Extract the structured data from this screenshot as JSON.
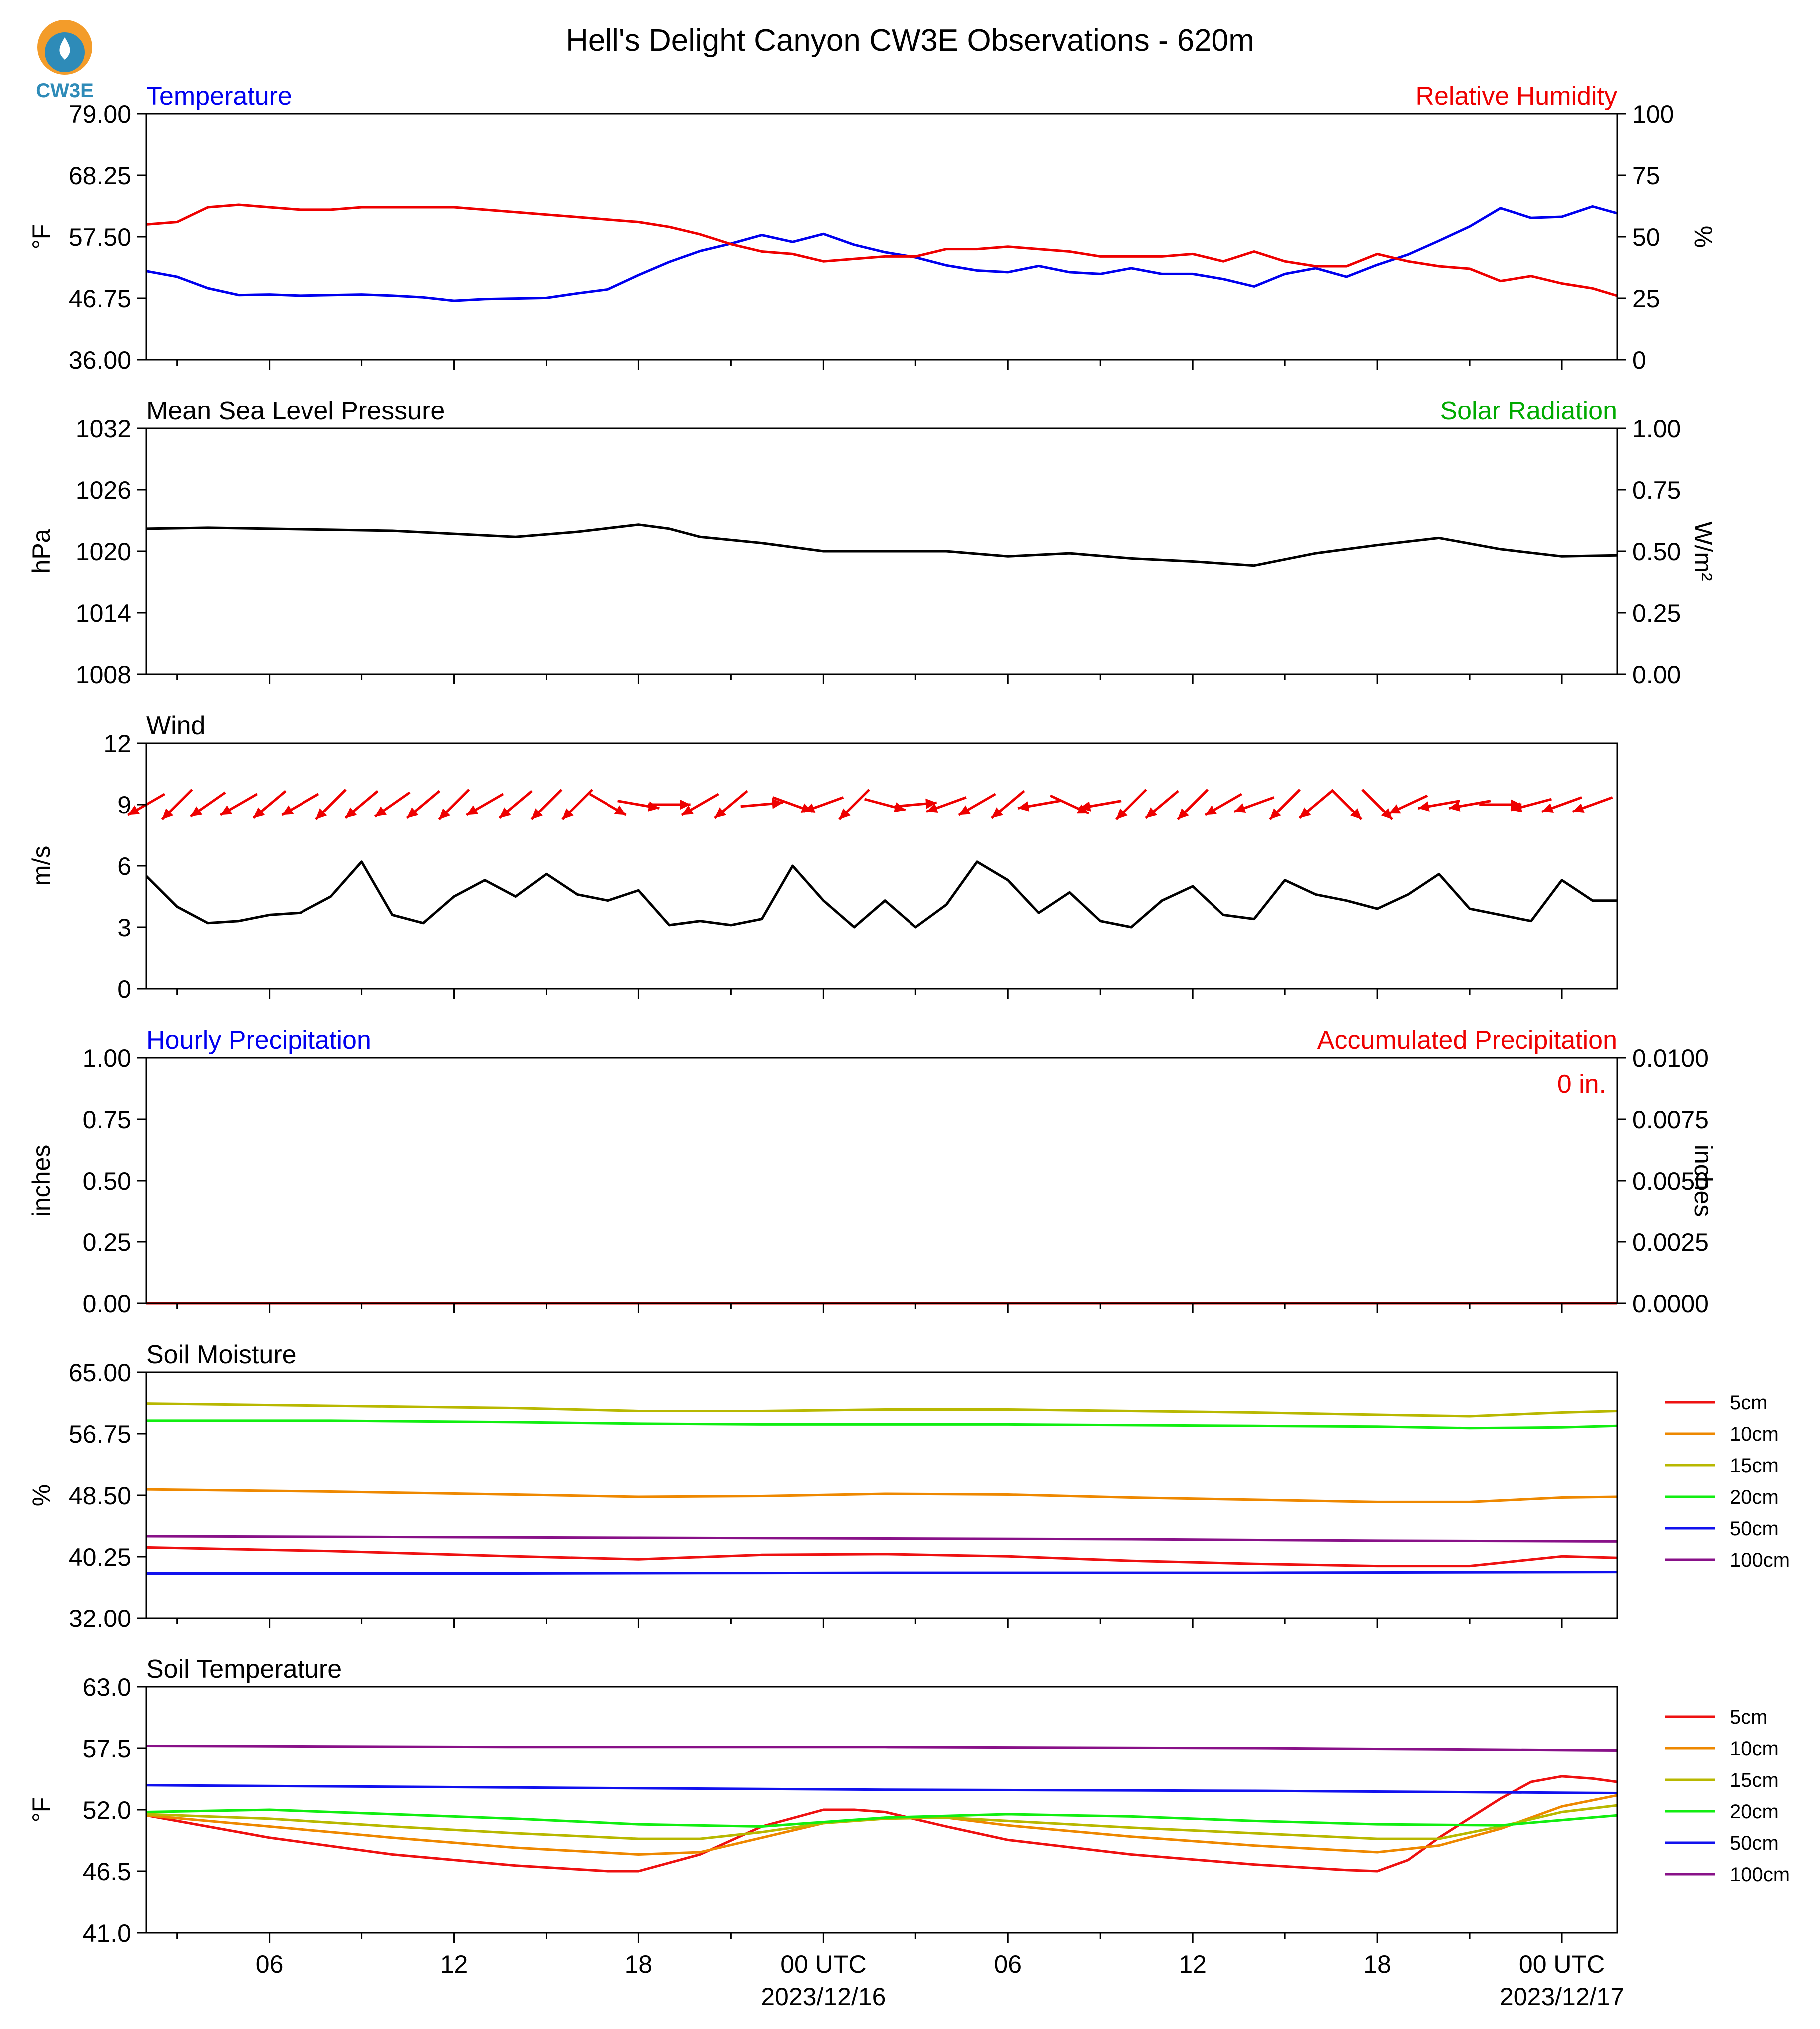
{
  "title": "Hell's Delight Canyon CW3E Observations - 620m",
  "logo": {
    "text": "CW3E"
  },
  "colors": {
    "blue": "#0000ee",
    "red": "#ee0000",
    "green": "#00aa00",
    "black": "#000000",
    "soil": {
      "5cm": "#ee1111",
      "10cm": "#ee8800",
      "15cm": "#b8b800",
      "20cm": "#11ee11",
      "50cm": "#1111ee",
      "100cm": "#881188"
    }
  },
  "chart_data": [
    {
      "type": "line",
      "panel": "temperature_humidity",
      "left_title": "Temperature",
      "right_title": "Relative Humidity",
      "ylabel": "°F",
      "ylabel_right": "%",
      "ylim": [
        36.0,
        79.0
      ],
      "ylim_right": [
        0,
        100
      ],
      "yticks": [
        "79.00",
        "68.25",
        "57.50",
        "46.75",
        "36.00"
      ],
      "yticks_right": [
        "100",
        "75",
        "50",
        "25",
        "0"
      ],
      "series": [
        {
          "name": "Temperature",
          "axis": "left",
          "x": [
            2,
            3,
            4,
            5,
            6,
            7,
            8,
            9,
            10,
            11,
            12,
            13,
            14,
            15,
            16,
            17,
            18,
            19,
            20,
            21,
            22,
            23,
            24,
            25,
            26,
            27,
            28,
            29,
            30,
            31,
            32,
            33,
            34,
            35,
            36,
            37,
            38,
            39,
            40,
            41,
            42,
            43,
            44,
            45,
            46,
            47,
            48,
            49,
            49.8
          ],
          "values": [
            51.5,
            50.5,
            48.5,
            47.3,
            47.4,
            47.2,
            47.3,
            47.4,
            47.2,
            46.9,
            46.3,
            46.6,
            46.7,
            46.8,
            47.6,
            48.3,
            50.8,
            53.1,
            55.0,
            56.3,
            57.8,
            56.6,
            58.0,
            56.1,
            54.8,
            53.9,
            52.5,
            51.6,
            51.3,
            52.4,
            51.3,
            51.0,
            52.0,
            51.0,
            51.0,
            50.1,
            48.8,
            51.0,
            52.0,
            50.5,
            52.6,
            54.4,
            56.8,
            59.3,
            62.5,
            60.8,
            61.0,
            62.8,
            61.6
          ]
        },
        {
          "name": "Relative Humidity",
          "axis": "right",
          "x": [
            2,
            3,
            4,
            5,
            6,
            7,
            8,
            9,
            10,
            11,
            12,
            13,
            14,
            15,
            16,
            17,
            18,
            19,
            20,
            21,
            22,
            23,
            24,
            25,
            26,
            27,
            28,
            29,
            30,
            31,
            32,
            33,
            34,
            35,
            36,
            37,
            38,
            39,
            40,
            41,
            42,
            43,
            44,
            45,
            46,
            47,
            48,
            49,
            49.8
          ],
          "values": [
            55,
            56,
            62,
            63,
            62,
            61,
            61,
            62,
            62,
            62,
            62,
            61,
            60,
            59,
            58,
            57,
            56,
            54,
            51,
            47,
            44,
            43,
            40,
            41,
            42,
            42,
            45,
            45,
            46,
            45,
            44,
            42,
            42,
            42,
            43,
            40,
            44,
            40,
            38,
            38,
            43,
            40,
            38,
            37,
            32,
            34,
            31,
            29,
            26
          ]
        }
      ]
    },
    {
      "type": "line",
      "panel": "pressure_solar",
      "left_title": "Mean Sea Level Pressure",
      "right_title": "Solar Radiation",
      "ylabel": "hPa",
      "ylabel_right": "W/m²",
      "ylim": [
        1008,
        1032
      ],
      "ylim_right": [
        0.0,
        1.0
      ],
      "yticks": [
        "1032",
        "1026",
        "1020",
        "1014",
        "1008"
      ],
      "yticks_right": [
        "1.00",
        "0.75",
        "0.50",
        "0.25",
        "0.00"
      ],
      "series": [
        {
          "name": "Mean Sea Level Pressure",
          "axis": "left",
          "x": [
            2,
            4,
            6,
            8,
            10,
            12,
            14,
            16,
            18,
            19,
            20,
            22,
            24,
            26,
            28,
            30,
            32,
            34,
            36,
            38,
            40,
            42,
            44,
            46,
            48,
            49.8
          ],
          "values": [
            1022.2,
            1022.3,
            1022.2,
            1022.1,
            1022.0,
            1021.7,
            1021.4,
            1021.9,
            1022.6,
            1022.2,
            1021.4,
            1020.8,
            1020.0,
            1020.0,
            1020.0,
            1019.5,
            1019.8,
            1019.3,
            1019.0,
            1018.6,
            1019.8,
            1020.6,
            1021.3,
            1020.2,
            1019.5,
            1019.6
          ]
        }
      ]
    },
    {
      "type": "line",
      "panel": "wind",
      "left_title": "Wind",
      "ylabel": "m/s",
      "ylim": [
        0,
        12
      ],
      "yticks": [
        "12",
        "9",
        "6",
        "3",
        "0"
      ],
      "series": [
        {
          "name": "Wind",
          "axis": "left",
          "x": [
            2,
            3,
            4,
            5,
            6,
            7,
            8,
            9,
            10,
            11,
            12,
            13,
            14,
            15,
            16,
            17,
            18,
            19,
            20,
            21,
            22,
            23,
            24,
            25,
            26,
            27,
            28,
            29,
            30,
            31,
            32,
            33,
            34,
            35,
            36,
            37,
            38,
            39,
            40,
            41,
            42,
            43,
            44,
            45,
            46,
            47,
            48,
            49,
            49.8
          ],
          "values": [
            5.5,
            4.0,
            3.2,
            3.3,
            3.6,
            3.7,
            4.5,
            6.2,
            3.6,
            3.2,
            4.5,
            5.3,
            4.5,
            5.6,
            4.6,
            4.3,
            4.8,
            3.1,
            3.3,
            3.1,
            3.4,
            6.0,
            4.3,
            3.0,
            4.3,
            3.0,
            4.1,
            6.2,
            5.3,
            3.7,
            4.7,
            3.3,
            3.0,
            4.3,
            5.0,
            3.6,
            3.4,
            5.3,
            4.6,
            4.3,
            3.9,
            4.6,
            5.6,
            3.9,
            3.6,
            3.3,
            5.3,
            4.3,
            4.3
          ]
        }
      ],
      "wind_arrows": {
        "note": "arrows point toward wind direction",
        "x": [
          2,
          3,
          4,
          5,
          6,
          7,
          8,
          9,
          10,
          11,
          12,
          13,
          14,
          15,
          16,
          17,
          18,
          19,
          20,
          21,
          22,
          23,
          24,
          25,
          26,
          27,
          28,
          29,
          30,
          31,
          32,
          33,
          34,
          35,
          36,
          37,
          38,
          39,
          40,
          41,
          42,
          43,
          44,
          45,
          46,
          47,
          48,
          49
        ],
        "to_degrees": [
          240,
          225,
          235,
          240,
          230,
          240,
          225,
          230,
          235,
          230,
          225,
          240,
          230,
          225,
          225,
          120,
          100,
          90,
          240,
          230,
          85,
          110,
          250,
          225,
          105,
          85,
          250,
          240,
          230,
          260,
          115,
          260,
          225,
          230,
          225,
          240,
          250,
          225,
          230,
          135,
          135,
          245,
          260,
          260,
          90,
          255,
          250,
          250
        ]
      }
    },
    {
      "type": "line",
      "panel": "precipitation",
      "left_title": "Hourly Precipitation",
      "right_title": "Accumulated Precipitation",
      "annotation": "0 in.",
      "ylabel": "inches",
      "ylabel_right": "inches",
      "ylim": [
        0.0,
        1.0
      ],
      "ylim_right": [
        0.0,
        0.01
      ],
      "yticks": [
        "1.00",
        "0.75",
        "0.50",
        "0.25",
        "0.00"
      ],
      "yticks_right": [
        "0.0100",
        "0.0075",
        "0.0050",
        "0.0025",
        "0.0000"
      ],
      "series": [
        {
          "name": "Hourly Precipitation",
          "axis": "left",
          "x": [
            2,
            49.8
          ],
          "values": [
            0,
            0
          ]
        },
        {
          "name": "Accumulated Precipitation",
          "axis": "right",
          "x": [
            2,
            49.8
          ],
          "values": [
            0,
            0
          ]
        }
      ]
    },
    {
      "type": "line",
      "panel": "soil_moisture",
      "left_title": "Soil Moisture",
      "ylabel": "%",
      "ylim": [
        32.0,
        65.0
      ],
      "yticks": [
        "65.00",
        "56.75",
        "48.50",
        "40.25",
        "32.00"
      ],
      "legend": [
        "5cm",
        "10cm",
        "15cm",
        "20cm",
        "50cm",
        "100cm"
      ],
      "series": [
        {
          "name": "5cm",
          "axis": "left",
          "x": [
            2,
            8,
            14,
            18,
            22,
            26,
            30,
            34,
            38,
            42,
            45,
            48,
            49.8
          ],
          "values": [
            41.5,
            41.0,
            40.3,
            39.9,
            40.5,
            40.6,
            40.3,
            39.7,
            39.3,
            39.0,
            39.0,
            40.3,
            40.1
          ]
        },
        {
          "name": "10cm",
          "axis": "left",
          "x": [
            2,
            8,
            14,
            18,
            22,
            26,
            30,
            34,
            38,
            42,
            45,
            48,
            49.8
          ],
          "values": [
            49.3,
            49.0,
            48.6,
            48.3,
            48.4,
            48.7,
            48.6,
            48.2,
            47.9,
            47.6,
            47.6,
            48.2,
            48.3
          ]
        },
        {
          "name": "15cm",
          "axis": "left",
          "x": [
            2,
            8,
            14,
            18,
            22,
            26,
            30,
            34,
            38,
            42,
            45,
            48,
            49.8
          ],
          "values": [
            60.8,
            60.5,
            60.2,
            59.8,
            59.8,
            60.0,
            60.0,
            59.8,
            59.6,
            59.3,
            59.1,
            59.6,
            59.8
          ]
        },
        {
          "name": "20cm",
          "axis": "left",
          "x": [
            2,
            8,
            14,
            18,
            22,
            26,
            30,
            34,
            38,
            42,
            45,
            48,
            49.8
          ],
          "values": [
            58.5,
            58.5,
            58.3,
            58.1,
            58.0,
            58.0,
            58.0,
            57.9,
            57.8,
            57.7,
            57.5,
            57.6,
            57.8
          ]
        },
        {
          "name": "50cm",
          "axis": "left",
          "x": [
            2,
            14,
            26,
            38,
            49.8
          ],
          "values": [
            38.0,
            38.0,
            38.1,
            38.1,
            38.2
          ]
        },
        {
          "name": "100cm",
          "axis": "left",
          "x": [
            2,
            10,
            18,
            26,
            34,
            42,
            49.8
          ],
          "values": [
            43.0,
            42.9,
            42.8,
            42.7,
            42.6,
            42.4,
            42.3
          ]
        }
      ]
    },
    {
      "type": "line",
      "panel": "soil_temperature",
      "left_title": "Soil Temperature",
      "ylabel": "°F",
      "ylim": [
        41.0,
        63.0
      ],
      "yticks": [
        "63.0",
        "57.5",
        "52.0",
        "46.5",
        "41.0"
      ],
      "legend": [
        "5cm",
        "10cm",
        "15cm",
        "20cm",
        "50cm",
        "100cm"
      ],
      "series": [
        {
          "name": "5cm",
          "axis": "left",
          "x": [
            2,
            6,
            10,
            14,
            17,
            18,
            20,
            22,
            24,
            25,
            26,
            28,
            30,
            34,
            38,
            41,
            42,
            43,
            44,
            46,
            47,
            48,
            49,
            49.8
          ],
          "values": [
            51.5,
            49.5,
            48.0,
            47.0,
            46.5,
            46.5,
            48.0,
            50.5,
            52.0,
            52.0,
            51.8,
            50.5,
            49.3,
            48.0,
            47.1,
            46.6,
            46.5,
            47.5,
            49.5,
            53.0,
            54.5,
            55.0,
            54.8,
            54.5
          ]
        },
        {
          "name": "10cm",
          "axis": "left",
          "x": [
            2,
            6,
            10,
            14,
            18,
            20,
            22,
            24,
            26,
            28,
            30,
            34,
            38,
            42,
            44,
            46,
            48,
            49.8
          ],
          "values": [
            51.5,
            50.5,
            49.5,
            48.6,
            48.0,
            48.2,
            49.5,
            50.8,
            51.3,
            51.3,
            50.6,
            49.6,
            48.8,
            48.2,
            48.8,
            50.3,
            52.3,
            53.3
          ]
        },
        {
          "name": "15cm",
          "axis": "left",
          "x": [
            2,
            6,
            10,
            14,
            18,
            20,
            22,
            24,
            26,
            28,
            30,
            34,
            38,
            42,
            44,
            46,
            48,
            49.8
          ],
          "values": [
            51.6,
            51.2,
            50.5,
            49.9,
            49.4,
            49.4,
            50.0,
            50.8,
            51.2,
            51.3,
            51.0,
            50.4,
            49.9,
            49.4,
            49.4,
            50.5,
            51.8,
            52.4
          ]
        },
        {
          "name": "20cm",
          "axis": "left",
          "x": [
            2,
            6,
            10,
            14,
            18,
            22,
            26,
            30,
            34,
            38,
            42,
            46,
            49.8
          ],
          "values": [
            51.8,
            52.0,
            51.6,
            51.2,
            50.7,
            50.5,
            51.3,
            51.6,
            51.4,
            51.0,
            50.7,
            50.6,
            51.5
          ]
        },
        {
          "name": "50cm",
          "axis": "left",
          "x": [
            2,
            14,
            26,
            38,
            49.8
          ],
          "values": [
            54.2,
            54.0,
            53.8,
            53.7,
            53.5
          ]
        },
        {
          "name": "100cm",
          "axis": "left",
          "x": [
            2,
            14,
            26,
            38,
            49.8
          ],
          "values": [
            57.7,
            57.6,
            57.6,
            57.5,
            57.3
          ]
        }
      ]
    }
  ],
  "x_axis": {
    "xlim": [
      2,
      49.8
    ],
    "major_ticks": [
      {
        "x": 6,
        "label": "06",
        "sub": ""
      },
      {
        "x": 12,
        "label": "12",
        "sub": ""
      },
      {
        "x": 18,
        "label": "18",
        "sub": ""
      },
      {
        "x": 24,
        "label": "00 UTC",
        "sub": "2023/12/16"
      },
      {
        "x": 30,
        "label": "06",
        "sub": ""
      },
      {
        "x": 36,
        "label": "12",
        "sub": ""
      },
      {
        "x": 42,
        "label": "18",
        "sub": ""
      },
      {
        "x": 48,
        "label": "00 UTC",
        "sub": "2023/12/17"
      }
    ],
    "minor_ticks": [
      3,
      9,
      15,
      21,
      27,
      33,
      39,
      45
    ]
  }
}
